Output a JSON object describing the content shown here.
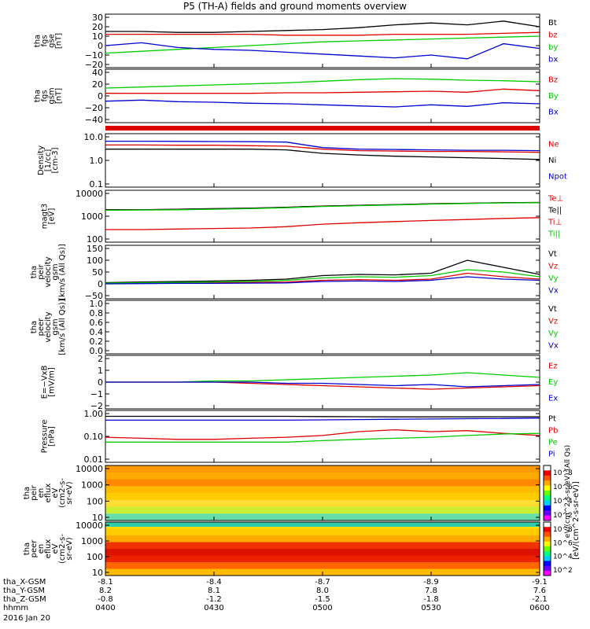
{
  "title": "P5 (TH-A) fields and ground moments overview",
  "date": "2016 Jan 20",
  "time_axis": {
    "rows": [
      {
        "label": "tha_X-GSM",
        "values": [
          "-8.1",
          "-8.4",
          "-8.7",
          "-8.9",
          "-9.1"
        ]
      },
      {
        "label": "tha_Y-GSM",
        "values": [
          "8.2",
          "8.1",
          "8.0",
          "7.8",
          "7.6"
        ]
      },
      {
        "label": "tha_Z-GSM",
        "values": [
          "-0.8",
          "-1.2",
          "-1.5",
          "-1.8",
          "-2.1"
        ]
      },
      {
        "label": "hhmm",
        "values": [
          "0400",
          "0430",
          "0500",
          "0530",
          "0600"
        ]
      }
    ]
  },
  "colors": {
    "black": "#000000",
    "red": "#dd0000",
    "green": "#00cc00",
    "blue": "#0000cc"
  },
  "colorbar": {
    "label": "[eV/(cm^2-s-sr-eV)]",
    "label2": "eV/(cm^2-s-sr-eV) (All Qs)",
    "ticks": [
      "10^2",
      "10^4",
      "10^6",
      "10^8"
    ],
    "colors": [
      "#ff00ff",
      "#6600ff",
      "#0000ff",
      "#00ccff",
      "#00ff80",
      "#66ff00",
      "#ffff00",
      "#ffaa00",
      "#ff5500",
      "#ee0000",
      "#ffffff"
    ]
  },
  "panels": [
    {
      "ylabel": [
        "tha",
        "fgs",
        "gse",
        "[nT]"
      ],
      "ticks": [
        "30",
        "20",
        "10",
        "0",
        "−10",
        "−20"
      ],
      "legend": [
        {
          "text": "Bt",
          "color": "#000000"
        },
        {
          "text": "bz",
          "color": "#dd0000"
        },
        {
          "text": "by",
          "color": "#00cc00"
        },
        {
          "text": "bx",
          "color": "#0000cc"
        }
      ]
    },
    {
      "ylabel": [
        "tha",
        "fgs",
        "gsm",
        "[nT]"
      ],
      "ticks": [
        "40",
        "20",
        "0",
        "−20",
        "−40"
      ],
      "legend": [
        {
          "text": "Bz",
          "color": "#dd0000"
        },
        {
          "text": "By",
          "color": "#00cc00"
        },
        {
          "text": "Bx",
          "color": "#0000cc"
        }
      ]
    },
    {
      "ylabel": [
        "Density",
        "[1/cc]",
        "[cm-3]"
      ],
      "ticks": [
        "10.0",
        "1.0",
        "0.1"
      ],
      "legend": [
        {
          "text": "Ne",
          "color": "#dd0000"
        },
        {
          "text": "Ni",
          "color": "#000000"
        },
        {
          "text": "Npot",
          "color": "#0000cc"
        }
      ]
    },
    {
      "ylabel": [
        "magt3",
        "[eV]"
      ],
      "ticks": [
        "10000",
        "1000",
        "100"
      ],
      "legend": [
        {
          "text": "Te⊥",
          "color": "#dd0000"
        },
        {
          "text": "Te||",
          "color": "#000000"
        },
        {
          "text": "Ti⊥",
          "color": "#dd0000"
        },
        {
          "text": "Ti||",
          "color": "#00cc00"
        }
      ]
    },
    {
      "ylabel": [
        "tha",
        "peir",
        "velocity",
        "gsm",
        "[km/s (All Qs)]"
      ],
      "ticks": [
        "150",
        "100",
        "50",
        "0",
        "−50"
      ],
      "legend": [
        {
          "text": "Vt",
          "color": "#000000"
        },
        {
          "text": "Vz",
          "color": "#dd0000"
        },
        {
          "text": "Vy",
          "color": "#00cc00"
        },
        {
          "text": "Vx",
          "color": "#0000cc"
        }
      ]
    },
    {
      "ylabel": [
        "tha",
        "peer",
        "velocity",
        "gsm",
        "[km/s (All Qs)]"
      ],
      "ticks": [
        "1.0",
        "0.8",
        "0.6",
        "0.4",
        "0.2",
        "0.0"
      ],
      "legend": [
        {
          "text": "Vt",
          "color": "#000000"
        },
        {
          "text": "Vz",
          "color": "#dd0000"
        },
        {
          "text": "Vy",
          "color": "#00cc00"
        },
        {
          "text": "Vx",
          "color": "#0000cc"
        }
      ]
    },
    {
      "ylabel": [
        "E=−VxB",
        "[mV/m]"
      ],
      "ticks": [
        "2",
        "1",
        "0",
        "−1",
        "−2"
      ],
      "legend": [
        {
          "text": "Ez",
          "color": "#dd0000"
        },
        {
          "text": "Ey",
          "color": "#00cc00"
        },
        {
          "text": "Ex",
          "color": "#0000cc"
        }
      ]
    },
    {
      "ylabel": [
        "Pressure",
        "[nPa]"
      ],
      "ticks": [
        "1.00",
        "0.10",
        "0.01"
      ],
      "legend": [
        {
          "text": "Pt",
          "color": "#000000"
        },
        {
          "text": "Pb",
          "color": "#dd0000"
        },
        {
          "text": "Pe",
          "color": "#00cc00"
        },
        {
          "text": "Pi",
          "color": "#0000cc"
        }
      ]
    },
    {
      "ylabel": [
        "tha",
        "peir",
        "en",
        "eflux",
        "eV",
        "(cm2-s-",
        "sr-eV)"
      ],
      "ticks": [
        "10000",
        "1000",
        "100",
        "10"
      ]
    },
    {
      "ylabel": [
        "tha",
        "peer",
        "en",
        "eflux",
        "eV",
        "(cm2-s-",
        "sr-eV)"
      ],
      "ticks": [
        "10000",
        "1000",
        "100",
        "10"
      ]
    }
  ],
  "chart_data": {
    "type": "line",
    "title": "P5 (TH-A) fields and ground moments overview",
    "x": [
      "0400",
      "0410",
      "0420",
      "0430",
      "0440",
      "0450",
      "0500",
      "0510",
      "0520",
      "0530",
      "0540",
      "0550",
      "0600"
    ],
    "x_labels": [
      "0400",
      "0430",
      "0500",
      "0530",
      "0600"
    ],
    "panels": [
      {
        "name": "tha fgs gse [nT]",
        "ylim": [
          -20,
          30
        ],
        "scale": "linear",
        "series": [
          {
            "name": "Bt",
            "values": [
              15,
              15,
              14,
              14,
              15,
              16,
              17,
              19,
              22,
              24,
              22,
              26,
              20
            ]
          },
          {
            "name": "bz",
            "values": [
              12,
              12,
              12,
              12,
              12,
              11,
              11,
              11,
              12,
              12,
              12,
              13,
              14
            ]
          },
          {
            "name": "by",
            "values": [
              -8,
              -6,
              -4,
              -2,
              0,
              2,
              4,
              5,
              6,
              7,
              8,
              9,
              10
            ]
          },
          {
            "name": "bx",
            "values": [
              0,
              3,
              -2,
              -4,
              -5,
              -7,
              -9,
              -11,
              -13,
              -10,
              -14,
              2,
              -3
            ]
          }
        ]
      },
      {
        "name": "tha fgs gsm [nT]",
        "ylim": [
          -50,
          40
        ],
        "scale": "linear",
        "series": [
          {
            "name": "Bz",
            "values": [
              0,
              0,
              0,
              0,
              0,
              1,
              1,
              2,
              3,
              4,
              2,
              8,
              5
            ]
          },
          {
            "name": "By",
            "values": [
              10,
              12,
              14,
              16,
              18,
              20,
              23,
              26,
              28,
              27,
              25,
              24,
              22
            ]
          },
          {
            "name": "Bx",
            "values": [
              -15,
              -13,
              -16,
              -17,
              -19,
              -20,
              -22,
              -24,
              -26,
              -22,
              -25,
              -18,
              -20
            ]
          }
        ]
      },
      {
        "name": "Density [1/cc]",
        "ylim": [
          0.1,
          10
        ],
        "scale": "log",
        "series": [
          {
            "name": "Ne",
            "values": [
              4.5,
              4.5,
              4.4,
              4.4,
              4.2,
              4.0,
              3.0,
              2.6,
              2.5,
              2.4,
              2.4,
              2.3,
              2.2
            ]
          },
          {
            "name": "Ni",
            "values": [
              3.0,
              3.0,
              3.0,
              3.0,
              3.0,
              2.8,
              2.0,
              1.7,
              1.5,
              1.4,
              1.3,
              1.2,
              1.1
            ]
          },
          {
            "name": "Npot",
            "values": [
              6.5,
              6.5,
              6.4,
              6.3,
              6.2,
              6.0,
              3.5,
              3.0,
              2.9,
              2.8,
              2.7,
              2.7,
              2.6
            ]
          }
        ]
      },
      {
        "name": "magt3 [eV]",
        "ylim": [
          50,
          10000
        ],
        "scale": "log",
        "series": [
          {
            "name": "Te⊥",
            "values": [
              1500,
              1500,
              1600,
              1700,
              1800,
              2000,
              2300,
              2500,
              2700,
              3000,
              3200,
              3400,
              3500
            ]
          },
          {
            "name": "Te||",
            "values": [
              1500,
              1500,
              1600,
              1700,
              1800,
              2000,
              2300,
              2500,
              2700,
              3000,
              3200,
              3400,
              3500
            ]
          },
          {
            "name": "Ti⊥",
            "values": [
              150,
              150,
              160,
              170,
              180,
              210,
              280,
              330,
              380,
              430,
              480,
              550,
              600
            ]
          },
          {
            "name": "Ti||",
            "values": [
              1400,
              1450,
              1500,
              1600,
              1700,
              1900,
              2200,
              2400,
              2600,
              2900,
              3100,
              3300,
              3400
            ]
          }
        ]
      },
      {
        "name": "tha peir velocity gsm [km/s (All Qs)]",
        "ylim": [
          -50,
          150
        ],
        "scale": "linear",
        "series": [
          {
            "name": "Vt",
            "values": [
              5,
              8,
              10,
              12,
              15,
              20,
              35,
              40,
              38,
              45,
              100,
              70,
              40
            ]
          },
          {
            "name": "Vz",
            "values": [
              2,
              3,
              4,
              5,
              6,
              8,
              15,
              18,
              15,
              20,
              45,
              30,
              20
            ]
          },
          {
            "name": "Vy",
            "values": [
              3,
              5,
              6,
              8,
              10,
              15,
              25,
              30,
              28,
              35,
              60,
              50,
              30
            ]
          },
          {
            "name": "Vx",
            "values": [
              0,
              1,
              2,
              2,
              3,
              4,
              10,
              12,
              10,
              15,
              30,
              20,
              15
            ]
          }
        ]
      },
      {
        "name": "tha peer velocity gsm [km/s (All Qs)]",
        "ylim": [
          0,
          1
        ],
        "scale": "linear",
        "series": []
      },
      {
        "name": "E=-VxB [mV/m]",
        "ylim": [
          -2,
          2
        ],
        "scale": "linear",
        "series": [
          {
            "name": "Ez",
            "values": [
              0,
              0,
              0,
              0,
              -0.1,
              -0.2,
              -0.3,
              -0.4,
              -0.5,
              -0.6,
              -0.5,
              -0.4,
              -0.3
            ]
          },
          {
            "name": "Ey",
            "values": [
              0,
              0,
              0,
              0.1,
              0.1,
              0.2,
              0.3,
              0.4,
              0.5,
              0.6,
              0.8,
              0.6,
              0.4
            ]
          },
          {
            "name": "Ex",
            "values": [
              0,
              0,
              0,
              0,
              0,
              -0.1,
              -0.1,
              -0.2,
              -0.3,
              -0.2,
              -0.4,
              -0.3,
              -0.2
            ]
          }
        ]
      },
      {
        "name": "Pressure [nPa]",
        "ylim": [
          0.01,
          1.2
        ],
        "scale": "log",
        "series": [
          {
            "name": "Pt",
            "values": [
              0.9,
              0.9,
              0.9,
              0.9,
              0.9,
              0.9,
              0.88,
              0.86,
              0.85,
              0.85,
              0.85,
              0.86,
              0.86
            ]
          },
          {
            "name": "Pb",
            "values": [
              0.1,
              0.09,
              0.08,
              0.08,
              0.09,
              0.1,
              0.12,
              0.18,
              0.22,
              0.18,
              0.2,
              0.15,
              0.12
            ]
          },
          {
            "name": "Pe",
            "values": [
              0.06,
              0.06,
              0.06,
              0.06,
              0.06,
              0.06,
              0.07,
              0.08,
              0.09,
              0.1,
              0.12,
              0.14,
              0.15
            ]
          },
          {
            "name": "Pi",
            "values": [
              0.6,
              0.6,
              0.6,
              0.6,
              0.6,
              0.6,
              0.62,
              0.64,
              0.66,
              0.68,
              0.7,
              0.72,
              0.75
            ]
          }
        ]
      }
    ]
  }
}
